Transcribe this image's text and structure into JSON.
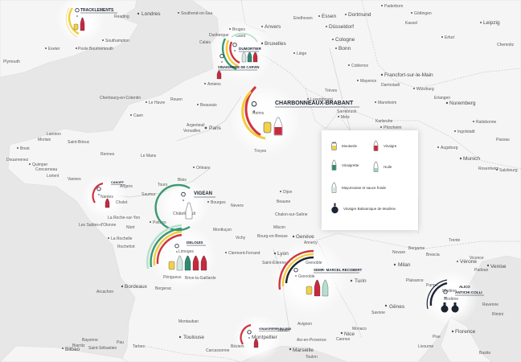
{
  "colors": {
    "moutarde": "#f2d04b",
    "vinaigre": "#c9293b",
    "vinaigrette": "#2e8b6e",
    "huile": "#9fd3bf",
    "mayonnaise": "#d8e7df",
    "balsamique": "#1d2433",
    "ring_yellow": "#f1cd3a",
    "ring_red": "#d0353f",
    "ring_green": "#3a9a72",
    "ring_dark": "#1d2433",
    "ring_mint": "#b5dfcc"
  },
  "legend": {
    "items": [
      {
        "label": "Moutarde",
        "icon": "mustard-jar-icon",
        "color": "#f2d04b"
      },
      {
        "label": "Vinaigre",
        "icon": "vinegar-bottle-icon",
        "color": "#c9293b"
      },
      {
        "label": "Vinaigrette",
        "icon": "vinaigrette-bottle-icon",
        "color": "#2e8b6e"
      },
      {
        "label": "Huile",
        "icon": "oil-bottle-icon",
        "color": "#9fd3bf"
      },
      {
        "label": "Mayonnaise et sauce froide",
        "icon": "mayonnaise-bottle-icon",
        "color": "#d8e7df"
      },
      {
        "label": "Vinaigre Balsamique de Modène",
        "icon": "balsamic-bottle-icon",
        "color": "#1d2433"
      }
    ]
  },
  "brands": {
    "trackements": "TRACKLEMENTS",
    "dumortier": "DUMORTIER",
    "carvin": "VINAIGRERIE DE CARVIN",
    "charbonneaux": "CHARBONNEAUX-BRABANT",
    "canoff": "CANOFF",
    "vigean": "VIGEAN",
    "delouis": "DELOUIS",
    "recobert": "SDMR- MARCEL RECOBERT",
    "vinaigrerie_midi": "VINAIGRERIE DU MIDI",
    "alico": "ALICO",
    "antichi": "ANTICHI COLLI"
  },
  "cities": {
    "londres": "Londres",
    "southend": "Southend-on-Sea",
    "reading": "Reading",
    "southampton": "Southampton",
    "poole": "Poole",
    "bournemouth": "Bournemouth",
    "exeter": "Exeter",
    "plymouth": "Plymouth",
    "padborn": "Paderborn",
    "essen": "Essen",
    "dortmund": "Dortmund",
    "gottingen": "Göttingen",
    "eindhoven": "Eindhoven",
    "dusseldorf": "Düsseldorf",
    "cologne": "Cologne",
    "bonn": "Bonn",
    "kassel": "Kassel",
    "erfurt": "Erfurt",
    "leipzig": "Leipzig",
    "anvers": "Anvers",
    "bruges": "Bruges",
    "gand": "Gand",
    "dunkerque": "Dunkerque",
    "bruxelles": "Bruxelles",
    "lille": "Lille",
    "liege": "Liège",
    "calais": "Calais",
    "coblence": "Coblence",
    "francfort": "Francfort-sur-le-Main",
    "mayence": "Mayence",
    "darmstadt": "Darmstadt",
    "wurzburg": "Würzburg",
    "luxembourg": "Luxembourg",
    "treves": "Trèves",
    "mannheim": "Mannheim",
    "erlangen": "Erlangen",
    "nuremberg": "Nuremberg",
    "amiens": "Amiens",
    "reims": "Reims",
    "metz": "Metz",
    "sarrebruck": "Sarrebruck",
    "karlsruhe": "Karlsruhe",
    "pforzheim": "Pforzheim",
    "regensburg": "Ratisbonne",
    "ingolstadt": "Ingolstadt",
    "augsburg": "Augsburg",
    "munich": "Munich",
    "salzbourg": "Salzbourg",
    "rosenheim": "Rosenheim",
    "passau": "Passau",
    "chemnitz": "Chemnitz",
    "cherbourg": "Cherbourg-en-Cotentin",
    "lehavre": "Le Havre",
    "rouen": "Rouen",
    "beauvais": "Beauvais",
    "caen": "Caen",
    "argenteuil": "Argenteuil",
    "versailles": "Versailles",
    "paris": "Paris",
    "troyes": "Troyes",
    "brest": "Brest",
    "lannion": "Lannion",
    "saintbrieuc": "Saint-Brieuc",
    "morlaix": "Morlaix",
    "quimper": "Quimper",
    "douarnenez": "Douarnenez",
    "concarneau": "Concarneau",
    "lorient": "Lorient",
    "vannes": "Vannes",
    "rennes": "Rennes",
    "lemans": "Le Mans",
    "chartres": "Chartres",
    "orleans": "Orléans",
    "tours": "Tours",
    "angers": "Angers",
    "nantes": "Nantes",
    "cholet": "Cholet",
    "saumur": "Saumur",
    "blois": "Blois",
    "chatellerault": "Châtellerault",
    "bourges": "Bourges",
    "nevers": "Nevers",
    "poitiers": "Poitiers",
    "niort": "Niort",
    "larochelle": "La Rochelle",
    "rochefort": "Rochefort",
    "sablesolonne": "Les Sables-d'Olonne",
    "larochesuryon": "La Roche-sur-Yon",
    "limoges": "Limoges",
    "brive": "Brive-la-Gaillarde",
    "perigueux": "Périgueux",
    "bergerac": "Bergerac",
    "bordeaux": "Bordeaux",
    "arcachon": "Arcachon",
    "clermont": "Clermont-Ferrand",
    "vichy": "Vichy",
    "montlucon": "Montluçon",
    "dijon": "Dijon",
    "chalon": "Chalon-sur-Saône",
    "beaune": "Beaune",
    "macon": "Mâcon",
    "bourg": "Bourg-en-Bresse",
    "geneve": "Genève",
    "annecy": "Annecy",
    "lyon": "Lyon",
    "grenoble": "Grenoble",
    "saintetienne": "Saint-Étienne",
    "turin": "Turin",
    "milan": "Milan",
    "novare": "Novare",
    "bergame": "Bergame",
    "brescia": "Brescia",
    "verone": "Vérone",
    "vicence": "Vicence",
    "venise": "Venise",
    "padoue": "Padoue",
    "trente": "Trente",
    "plaisance": "Plaisance",
    "parme": "Parme",
    "modene": "Modène",
    "bologne": "Bologne",
    "ravenne": "Ravenne",
    "rimini": "Rimini",
    "florence": "Florence",
    "pise": "Pise",
    "genes": "Gênes",
    "savone": "Savone",
    "montauban": "Montauban",
    "toulouse": "Toulouse",
    "tarbes": "Tarbes",
    "pau": "Pau",
    "bayonne": "Bayonne",
    "biarritz": "Biarritz",
    "bilbao": "Bilbao",
    "saintsebastien": "Saint-Sébastien",
    "carcassonne": "Carcassonne",
    "beziers": "Béziers",
    "montpellier": "Montpellier",
    "nimes": "Nîmes",
    "avignon": "Avignon",
    "aix": "Aix-en-Provence",
    "marseille": "Marseille",
    "toulon": "Toulon",
    "cannes": "Cannes",
    "nice": "Nice",
    "monaco": "Monaco",
    "sanremo": "Sanremo",
    "bastia": "Bastia",
    "livourne": "Livourne",
    "lucques": "Lucques",
    "lemans2": "Le Mans"
  }
}
